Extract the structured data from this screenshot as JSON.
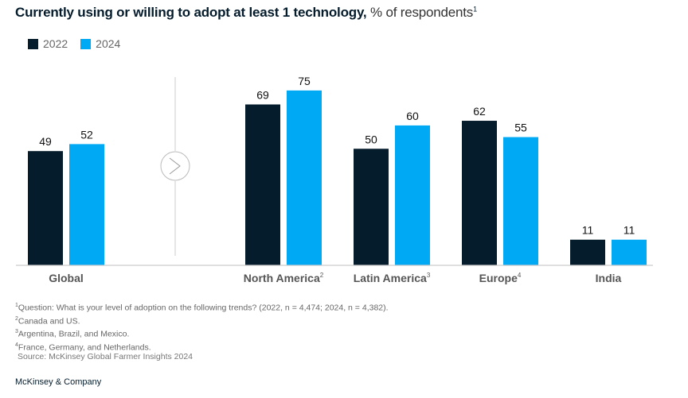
{
  "title": {
    "bold": "Currently using or willing to adopt at least 1 technology,",
    "light": "% of respondents",
    "footnote_mark": "1"
  },
  "colors": {
    "series_2022": "#051c2c",
    "series_2024": "#00a9f4",
    "axis": "#cccccc",
    "label_text": "#555555"
  },
  "divider_icon": "chevron-right-circle-icon",
  "chart_data": {
    "type": "bar",
    "title": "Currently using or willing to adopt at least 1 technology, % of respondents",
    "xlabel": "",
    "ylabel": "% of respondents",
    "ylim": [
      0,
      80
    ],
    "grid": false,
    "legend_position": "top-left",
    "categories": [
      "Global",
      "North America",
      "Latin America",
      "Europe",
      "India"
    ],
    "category_footnotes": [
      "",
      "2",
      "3",
      "4",
      ""
    ],
    "series": [
      {
        "name": "2022",
        "values": [
          49,
          69,
          50,
          62,
          11
        ]
      },
      {
        "name": "2024",
        "values": [
          52,
          75,
          60,
          55,
          11
        ]
      }
    ]
  },
  "footnotes": [
    {
      "mark": "1",
      "text": "Question: What is your level of adoption on the following trends? (2022, n = 4,474; 2024, n = 4,382)."
    },
    {
      "mark": "2",
      "text": "Canada and US."
    },
    {
      "mark": "3",
      "text": "Argentina, Brazil, and Mexico."
    },
    {
      "mark": "4",
      "text": "France, Germany, and Netherlands."
    }
  ],
  "source": "Source: McKinsey Global Farmer Insights 2024",
  "brand": "McKinsey & Company"
}
